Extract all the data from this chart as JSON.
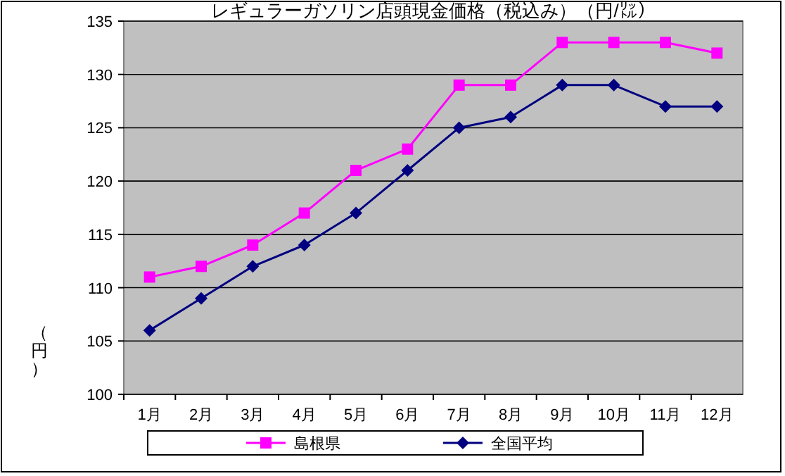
{
  "chart_data": {
    "type": "line",
    "title": "レギュラーガソリン店頭現金価格（税込み）（円/㍑）",
    "ylabel": "（円）",
    "categories": [
      "1月",
      "2月",
      "3月",
      "4月",
      "5月",
      "6月",
      "7月",
      "8月",
      "9月",
      "10月",
      "11月",
      "12月"
    ],
    "series": [
      {
        "name": "島根県",
        "color": "#ff00ff",
        "marker": "square",
        "values": [
          111,
          112,
          114,
          117,
          121,
          123,
          129,
          129,
          133,
          133,
          133,
          132
        ]
      },
      {
        "name": "全国平均",
        "color": "#000080",
        "marker": "diamond",
        "values": [
          106,
          109,
          112,
          114,
          117,
          121,
          125,
          126,
          129,
          129,
          127,
          127
        ]
      }
    ],
    "ylim": [
      100,
      135
    ],
    "yticks": [
      100,
      105,
      110,
      115,
      120,
      125,
      130,
      135
    ],
    "grid": "y",
    "legend": "bottom"
  }
}
